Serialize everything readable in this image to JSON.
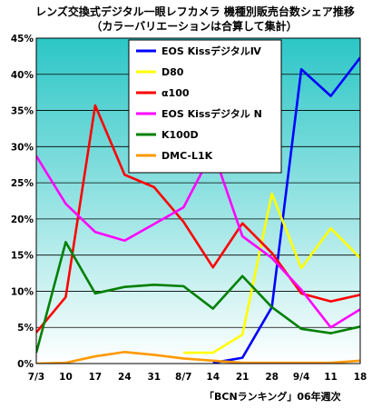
{
  "chart_data": {
    "type": "line",
    "title": "レンズ交換式デジタル一眼レフカメラ 機種別販売台数シェア推移",
    "subtitle": "（カラーバリエーションは合算して集計）",
    "source": "「BCNランキング」06年週次",
    "x": [
      "7/3",
      "10",
      "17",
      "24",
      "31",
      "8/7",
      "14",
      "21",
      "28",
      "9/4",
      "11",
      "18"
    ],
    "y_ticks": [
      "0%",
      "5%",
      "10%",
      "15%",
      "20%",
      "25%",
      "30%",
      "35%",
      "40%",
      "45%"
    ],
    "ylim": [
      0,
      45
    ],
    "grid": true,
    "legend_position": "top-center",
    "series": [
      {
        "name": "EOS KissデジタルⅣ",
        "color": "#0000ff",
        "values": [
          null,
          null,
          null,
          null,
          null,
          null,
          0.1,
          0.8,
          7.8,
          40.7,
          37.0,
          42.3
        ]
      },
      {
        "name": "D80",
        "color": "#ffff00",
        "values": [
          null,
          null,
          null,
          null,
          null,
          1.5,
          1.5,
          4.0,
          23.5,
          13.2,
          18.7,
          14.6
        ]
      },
      {
        "name": "α100",
        "color": "#ff0000",
        "values": [
          4.3,
          9.2,
          35.7,
          26.1,
          24.4,
          19.6,
          13.3,
          19.4,
          15.3,
          9.7,
          8.6,
          9.5
        ]
      },
      {
        "name": "EOS Kissデジタル N",
        "color": "#ff00ff",
        "values": [
          28.7,
          22.1,
          18.2,
          17.0,
          19.3,
          21.6,
          29.4,
          17.6,
          14.6,
          10.2,
          5.0,
          7.5
        ]
      },
      {
        "name": "K100D",
        "color": "#008000",
        "values": [
          1.5,
          16.8,
          9.7,
          10.6,
          10.9,
          10.7,
          7.6,
          12.1,
          7.8,
          4.8,
          4.2,
          5.1
        ]
      },
      {
        "name": "DMC-L1K",
        "color": "#ff9900",
        "values": [
          0.0,
          0.1,
          1.0,
          1.6,
          1.2,
          0.7,
          0.4,
          0.1,
          0.1,
          0.1,
          0.1,
          0.4
        ]
      }
    ]
  },
  "colors": {
    "plot_gradient_top": "#2cc6c6",
    "plot_gradient_bottom": "#ffffff"
  }
}
